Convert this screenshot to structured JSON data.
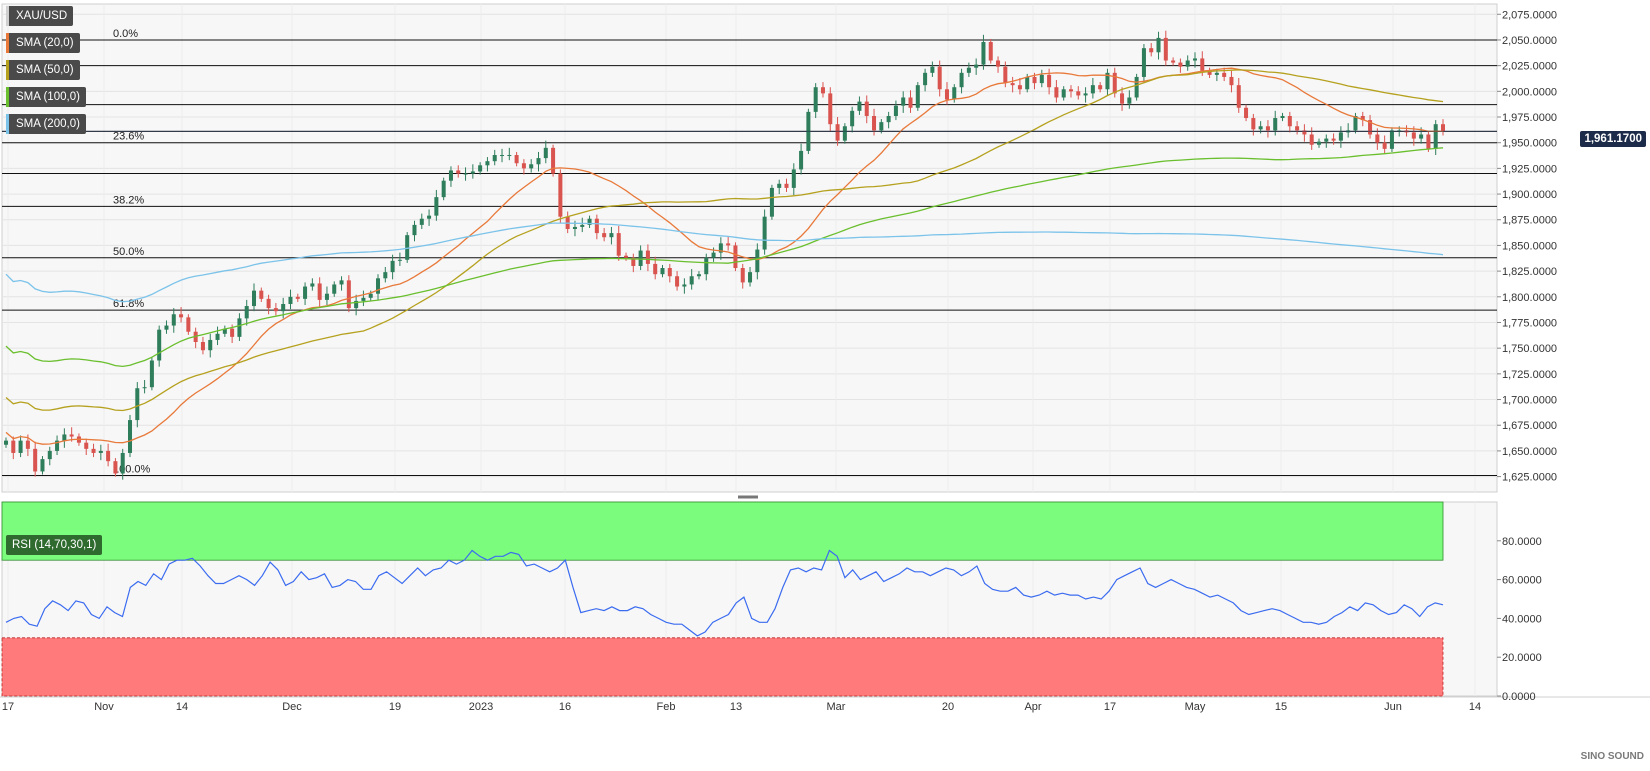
{
  "legend": {
    "symbol": "XAU/USD",
    "sma20": "SMA (20,0)",
    "sma50": "SMA (50,0)",
    "sma100": "SMA (100,0)",
    "sma200": "SMA (200,0)",
    "rsi": "RSI (14,70,30,1)"
  },
  "colors": {
    "bull": "#2e7d5b",
    "bear": "#d9534f",
    "sma20": "#e8793a",
    "sma50": "#b5a11e",
    "sma100": "#6abf2e",
    "sma200": "#7cc3ea",
    "rsi_line": "#3b6cf0",
    "overbought_zone": "#7cfc7c",
    "oversold_zone": "#ff7b7b"
  },
  "current_price": "1,961.1700",
  "watermark": "SINO SOUND",
  "chart_data": [
    {
      "type": "candlestick",
      "symbol": "XAU/USD",
      "ylim": [
        1610,
        2085
      ],
      "y_ticks": [
        "2,075.0000",
        "2,050.0000",
        "2,025.0000",
        "2,000.0000",
        "1,975.0000",
        "1,950.0000",
        "1,925.0000",
        "1,900.0000",
        "1,875.0000",
        "1,850.0000",
        "1,825.0000",
        "1,800.0000",
        "1,775.0000",
        "1,750.0000",
        "1,725.0000",
        "1,700.0000",
        "1,675.0000",
        "1,650.0000",
        "1,625.0000"
      ],
      "x_ticks": [
        "17",
        "Nov",
        "14",
        "Dec",
        "19",
        "2023",
        "16",
        "Feb",
        "13",
        "Mar",
        "20",
        "Apr",
        "17",
        "May",
        "15",
        "Jun",
        "14"
      ],
      "fibonacci": [
        {
          "level": "0.0%",
          "price": 2050
        },
        {
          "level": "",
          "price": 2025
        },
        {
          "level": "",
          "price": 1987
        },
        {
          "level": "",
          "price": 1961
        },
        {
          "level": "23.6%",
          "price": 1950
        },
        {
          "level": "",
          "price": 1920
        },
        {
          "level": "38.2%",
          "price": 1888
        },
        {
          "level": "50.0%",
          "price": 1838
        },
        {
          "level": "61.8%",
          "price": 1787
        },
        {
          "level": "100.0%",
          "price": 1626
        }
      ],
      "closes": [
        1660,
        1648,
        1660,
        1652,
        1630,
        1642,
        1650,
        1660,
        1666,
        1664,
        1658,
        1652,
        1648,
        1650,
        1640,
        1628,
        1648,
        1680,
        1711,
        1712,
        1738,
        1768,
        1772,
        1783,
        1780,
        1766,
        1756,
        1748,
        1758,
        1764,
        1769,
        1761,
        1779,
        1791,
        1806,
        1798,
        1789,
        1786,
        1793,
        1800,
        1798,
        1810,
        1813,
        1797,
        1803,
        1812,
        1816,
        1789,
        1796,
        1799,
        1803,
        1818,
        1824,
        1835,
        1836,
        1860,
        1870,
        1876,
        1879,
        1897,
        1913,
        1923,
        1920,
        1920,
        1922,
        1928,
        1932,
        1938,
        1938,
        1938,
        1930,
        1925,
        1929,
        1935,
        1945,
        1920,
        1878,
        1866,
        1868,
        1870,
        1876,
        1862,
        1858,
        1862,
        1840,
        1838,
        1830,
        1845,
        1832,
        1822,
        1828,
        1820,
        1810,
        1812,
        1820,
        1822,
        1838,
        1843,
        1852,
        1850,
        1828,
        1814,
        1824,
        1846,
        1878,
        1906,
        1910,
        1906,
        1924,
        1942,
        1980,
        2004,
        1998,
        1968,
        1952,
        1966,
        1981,
        1990,
        1976,
        1962,
        1970,
        1976,
        1986,
        1994,
        1984,
        2006,
        2018,
        2024,
        2002,
        1992,
        2004,
        2018,
        2023,
        2026,
        2048,
        2030,
        2024,
        2008,
        2006,
        2002,
        2014,
        2008,
        2016,
        2004,
        1994,
        2002,
        2000,
        1996,
        1998,
        2006,
        2002,
        2018,
        1998,
        1988,
        1994,
        2014,
        2042,
        2038,
        2052,
        2030,
        2028,
        2024,
        2030,
        2032,
        2020,
        2016,
        2018,
        2014,
        2006,
        1984,
        1974,
        1963,
        1966,
        1962,
        1974,
        1976,
        1966,
        1962,
        1958,
        1948,
        1951,
        1954,
        1952,
        1960,
        1962,
        1976,
        1972,
        1958,
        1950,
        1944,
        1962,
        1962,
        1960,
        1954,
        1958,
        1944,
        1968,
        1961
      ],
      "indicators": [
        {
          "name": "SMA (20,0)",
          "start": 1668,
          "end": 1961
        },
        {
          "name": "SMA (50,0)",
          "start": 1702,
          "end": 1990
        },
        {
          "name": "SMA (100,0)",
          "start": 1752,
          "end": 1945
        },
        {
          "name": "SMA (200,0)",
          "start": 1822,
          "end": 1841
        }
      ]
    },
    {
      "type": "line",
      "title": "RSI (14,70,30,1)",
      "ylim": [
        0,
        100
      ],
      "y_ticks": [
        "80.0000",
        "60.0000",
        "40.0000",
        "20.0000",
        "0.0000"
      ],
      "overbought": 70,
      "oversold": 30,
      "values": [
        38,
        40,
        41,
        37,
        36,
        45,
        49,
        47,
        44,
        49,
        48,
        42,
        40,
        46,
        43,
        41,
        56,
        59,
        57,
        63,
        60,
        68,
        70,
        70,
        71,
        67,
        62,
        58,
        58,
        60,
        62,
        60,
        57,
        62,
        69,
        65,
        57,
        59,
        64,
        60,
        61,
        63,
        56,
        57,
        60,
        59,
        55,
        55,
        62,
        64,
        61,
        58,
        62,
        66,
        62,
        65,
        66,
        70,
        68,
        70,
        75,
        72,
        70,
        72,
        72,
        74,
        73,
        67,
        68,
        66,
        64,
        66,
        70,
        56,
        43,
        44,
        45,
        44,
        46,
        44,
        44,
        46,
        45,
        42,
        40,
        38,
        37,
        37,
        34,
        31,
        33,
        38,
        40,
        42,
        48,
        51,
        40,
        38,
        38,
        45,
        56,
        65,
        66,
        64,
        66,
        65,
        75,
        72,
        61,
        65,
        60,
        62,
        64,
        59,
        61,
        63,
        66,
        64,
        64,
        62,
        64,
        66,
        65,
        62,
        64,
        67,
        58,
        55,
        54,
        54,
        56,
        52,
        51,
        52,
        54,
        52,
        53,
        52,
        52,
        50,
        51,
        50,
        54,
        60,
        62,
        64,
        66,
        58,
        56,
        58,
        60,
        58,
        56,
        55,
        53,
        51,
        52,
        50,
        48,
        44,
        42,
        43,
        44,
        45,
        44,
        42,
        40,
        38,
        38,
        37,
        38,
        41,
        43,
        46,
        44,
        48,
        47,
        44,
        42,
        43,
        47,
        45,
        41,
        46,
        48,
        47
      ]
    }
  ]
}
